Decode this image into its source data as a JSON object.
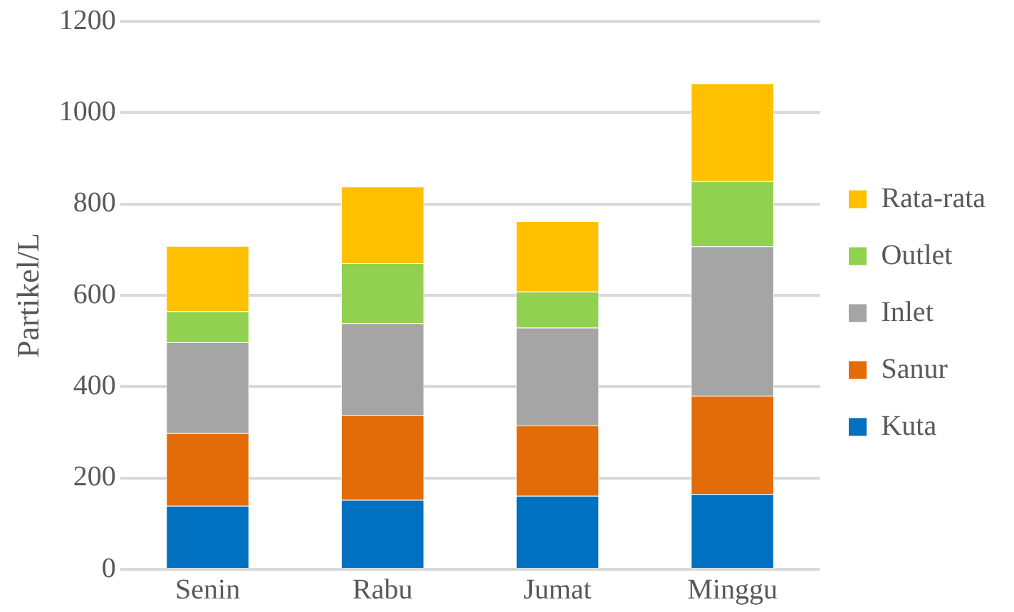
{
  "chart_data": {
    "type": "bar",
    "ylabel": "Partikel/L",
    "categories": [
      "Senin",
      "Rabu",
      "Jumat",
      "Minggu"
    ],
    "stacked": true,
    "series": [
      {
        "name": "Kuta",
        "color": "#0070c0",
        "values": [
          139,
          152,
          161,
          165
        ]
      },
      {
        "name": "Sanur",
        "color": "#e36c09",
        "values": [
          159,
          186,
          154,
          215
        ]
      },
      {
        "name": "Inlet",
        "color": "#a5a5a5",
        "values": [
          199,
          201,
          214,
          327
        ]
      },
      {
        "name": "Outlet",
        "color": "#92d050",
        "values": [
          68,
          131,
          79,
          143
        ]
      },
      {
        "name": "Rata-rata",
        "color": "#ffc000",
        "values": [
          143,
          168,
          154,
          214
        ]
      }
    ],
    "ylim": [
      0,
      1200
    ],
    "yticks": [
      0,
      200,
      400,
      600,
      800,
      1000,
      1200
    ],
    "grid": "y",
    "legend": "right"
  }
}
